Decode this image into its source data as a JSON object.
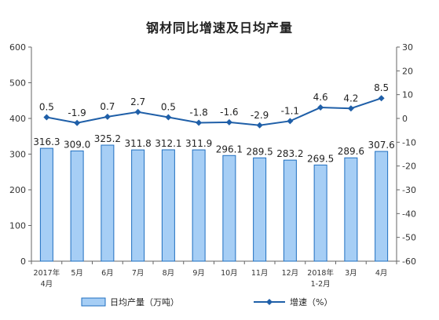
{
  "chart_data": {
    "type": "bar-line",
    "title": "钢材同比增速及日均产量",
    "categories": [
      [
        "2017年",
        "4月"
      ],
      [
        "5月"
      ],
      [
        "6月"
      ],
      [
        "7月"
      ],
      [
        "8月"
      ],
      [
        "9月"
      ],
      [
        "10月"
      ],
      [
        "11月"
      ],
      [
        "12月"
      ],
      [
        "2018年",
        "1-2月"
      ],
      [
        "3月"
      ],
      [
        "4月"
      ]
    ],
    "bar_series": {
      "name": "日均产量（万吨）",
      "values": [
        316.3,
        309.0,
        325.2,
        311.8,
        312.1,
        311.9,
        296.1,
        289.5,
        283.2,
        269.5,
        289.6,
        307.6
      ],
      "labels": [
        "316.3",
        "309.0",
        "325.2",
        "311.8",
        "312.1",
        "311.9",
        "296.1",
        "289.5",
        "283.2",
        "269.5",
        "289.6",
        "307.6"
      ],
      "color": "#a6cef5",
      "border": "#1f6fc0"
    },
    "line_series": {
      "name": "增速（%）",
      "values": [
        0.5,
        -1.9,
        0.7,
        2.7,
        0.5,
        -1.8,
        -1.6,
        -2.9,
        -1.1,
        4.6,
        4.2,
        8.5
      ],
      "labels": [
        "0.5",
        "-1.9",
        "0.7",
        "2.7",
        "0.5",
        "-1.8",
        "-1.6",
        "-2.9",
        "-1.1",
        "4.6",
        "4.2",
        "8.5"
      ],
      "color": "#1f5fa8"
    },
    "y_left": {
      "min": 0,
      "max": 600,
      "step": 100,
      "ticks": [
        "0",
        "100",
        "200",
        "300",
        "400",
        "500",
        "600"
      ]
    },
    "y_right": {
      "min": -60,
      "max": 30,
      "step": 10,
      "ticks": [
        "-60",
        "-50",
        "-40",
        "-30",
        "-20",
        "-10",
        "0",
        "10",
        "20",
        "30"
      ]
    },
    "grid": false,
    "legend_position": "bottom"
  }
}
